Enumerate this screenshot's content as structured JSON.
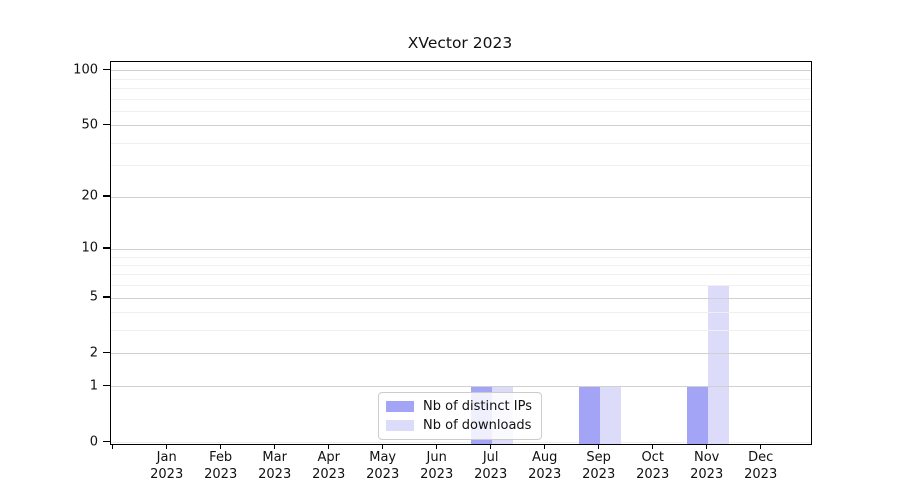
{
  "chart_data": {
    "type": "bar",
    "title": "XVector 2023",
    "scale": "log1p",
    "year": "2023",
    "categories": [
      "Jan",
      "Feb",
      "Mar",
      "Apr",
      "May",
      "Jun",
      "Jul",
      "Aug",
      "Sep",
      "Oct",
      "Nov",
      "Dec"
    ],
    "series": [
      {
        "name": "Nb of distinct IPs",
        "color": "#a4a4f6",
        "values": [
          0,
          0,
          0,
          0,
          0,
          0,
          1,
          0,
          1,
          0,
          1,
          0
        ]
      },
      {
        "name": "Nb of downloads",
        "color": "#dcdcfa",
        "values": [
          0,
          0,
          0,
          0,
          0,
          0,
          1,
          0,
          1,
          0,
          6,
          0
        ]
      }
    ],
    "y_axis": {
      "major_ticks": [
        0,
        1,
        2,
        5,
        10,
        20,
        50,
        100
      ],
      "minor_ticks": [
        3,
        4,
        6,
        7,
        8,
        9,
        30,
        40,
        60,
        70,
        80,
        90
      ],
      "ylim": [
        0,
        115
      ]
    },
    "grid": {
      "major_color": "#d0d0d0",
      "minor_color": "#f0f0f0"
    },
    "legend": {
      "position": "bottom-center"
    }
  }
}
